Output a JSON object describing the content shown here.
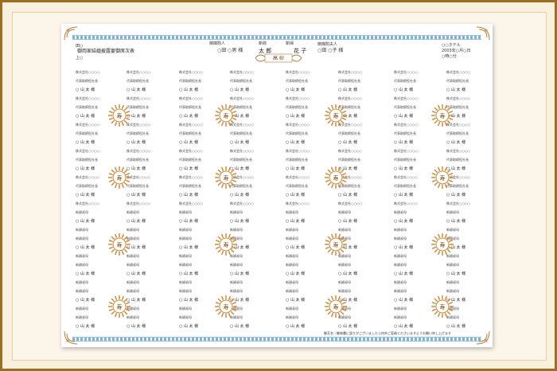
{
  "header": {
    "left_line1": "田○",
    "left_title": "御両家結婚披露宴御席次表",
    "left_line3": "上○",
    "groom_label": "御媒酌人",
    "groom_value": "○田 ○男 様",
    "groom_name_label": "新郎",
    "groom_name_value": "太 郎",
    "bride_name_label": "新婦",
    "bride_name_value": "花 子",
    "bride_label": "御媒酌夫人",
    "bride_value": "○田 ○子 様",
    "right_line1": "○○ホテル",
    "right_line2": "2003年○月○日",
    "right_line3": "○時○分",
    "center": "高 砂"
  },
  "guest_company": "株式会社○○○○",
  "guest_title": "代表取締役社長",
  "guest_name": "○ 山  太  様",
  "guest_relation": "新婦叔母",
  "kotobuki_char": "寿",
  "footer": "御芳名・御肩書に誤りがございましたら何卒ご容赦くださいますようお願い申し上げます"
}
